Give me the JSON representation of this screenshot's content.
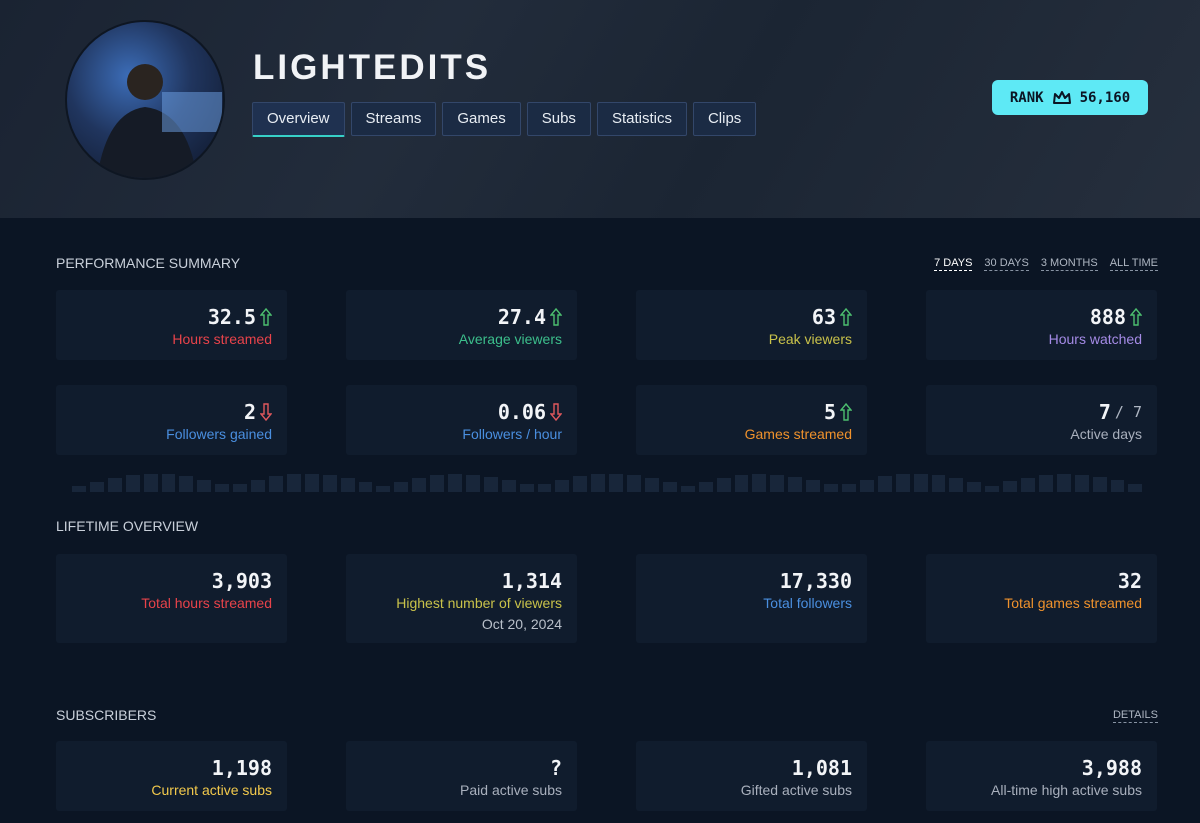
{
  "profile": {
    "name": "LIGHTEDITS",
    "rank_label": "RANK",
    "rank": "56,160"
  },
  "tabs": [
    "Overview",
    "Streams",
    "Games",
    "Subs",
    "Statistics",
    "Clips"
  ],
  "performance": {
    "title": "PERFORMANCE SUMMARY",
    "ranges": [
      "7 DAYS",
      "30 DAYS",
      "3 MONTHS",
      "ALL TIME"
    ],
    "cards": [
      {
        "value": "32.5",
        "label": "Hours streamed",
        "trend": "up",
        "color": "#e8434a"
      },
      {
        "value": "27.4",
        "label": "Average viewers",
        "trend": "up",
        "color": "#3cbf8c"
      },
      {
        "value": "63",
        "label": "Peak viewers",
        "trend": "up",
        "color": "#c9c24a"
      },
      {
        "value": "888",
        "label": "Hours watched",
        "trend": "up",
        "color": "#a58be6"
      },
      {
        "value": "2",
        "label": "Followers gained",
        "trend": "down",
        "color": "#4a8fe0"
      },
      {
        "value": "0.06",
        "label": "Followers / hour",
        "trend": "down",
        "color": "#4a8fe0"
      },
      {
        "value": "5",
        "label": "Games streamed",
        "trend": "up",
        "color": "#f0922c"
      },
      {
        "value": "7",
        "total": "/ 7",
        "label": "Active days",
        "color": "#a9b0bd"
      }
    ]
  },
  "lifetime": {
    "title": "LIFETIME OVERVIEW",
    "cards": [
      {
        "value": "3,903",
        "label": "Total hours streamed",
        "color": "#e8434a"
      },
      {
        "value": "1,314",
        "label": "Highest number of viewers",
        "note": "Oct 20, 2024",
        "color": "#c9c24a"
      },
      {
        "value": "17,330",
        "label": "Total followers",
        "color": "#4a8fe0"
      },
      {
        "value": "32",
        "label": "Total games streamed",
        "color": "#f0922c"
      }
    ]
  },
  "subscribers": {
    "title": "SUBSCRIBERS",
    "link": "DETAILS",
    "cards": [
      {
        "value": "1,198",
        "label": "Current active subs",
        "color": "#f2c94c"
      },
      {
        "value": "?",
        "label": "Paid active subs",
        "color": "#a9b0bd"
      },
      {
        "value": "1,081",
        "label": "Gifted active subs",
        "color": "#a9b0bd"
      },
      {
        "value": "3,988",
        "label": "All-time high active subs",
        "color": "#a9b0bd"
      }
    ]
  }
}
